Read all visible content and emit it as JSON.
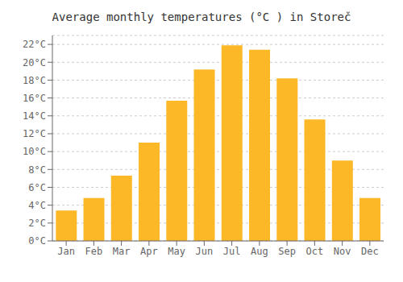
{
  "chart_data": {
    "type": "bar",
    "title": "Average monthly temperatures (°C ) in Storeč",
    "categories": [
      "Jan",
      "Feb",
      "Mar",
      "Apr",
      "May",
      "Jun",
      "Jul",
      "Aug",
      "Sep",
      "Oct",
      "Nov",
      "Dec"
    ],
    "values": [
      3.4,
      4.8,
      7.3,
      11.0,
      15.7,
      19.2,
      21.9,
      21.4,
      18.2,
      13.6,
      9.0,
      4.8
    ],
    "color": "#FDB827",
    "ylim": [
      0,
      23
    ],
    "yticks": [
      {
        "value": 0,
        "label": "0°C"
      },
      {
        "value": 2,
        "label": "2°C"
      },
      {
        "value": 4,
        "label": "4°C"
      },
      {
        "value": 6,
        "label": "6°C"
      },
      {
        "value": 8,
        "label": "8°C"
      },
      {
        "value": 10,
        "label": "10°C"
      },
      {
        "value": 12,
        "label": "12°C"
      },
      {
        "value": 14,
        "label": "14°C"
      },
      {
        "value": 16,
        "label": "16°C"
      },
      {
        "value": 18,
        "label": "18°C"
      },
      {
        "value": 20,
        "label": "20°C"
      },
      {
        "value": 22,
        "label": "22°C"
      }
    ],
    "grid": true
  }
}
